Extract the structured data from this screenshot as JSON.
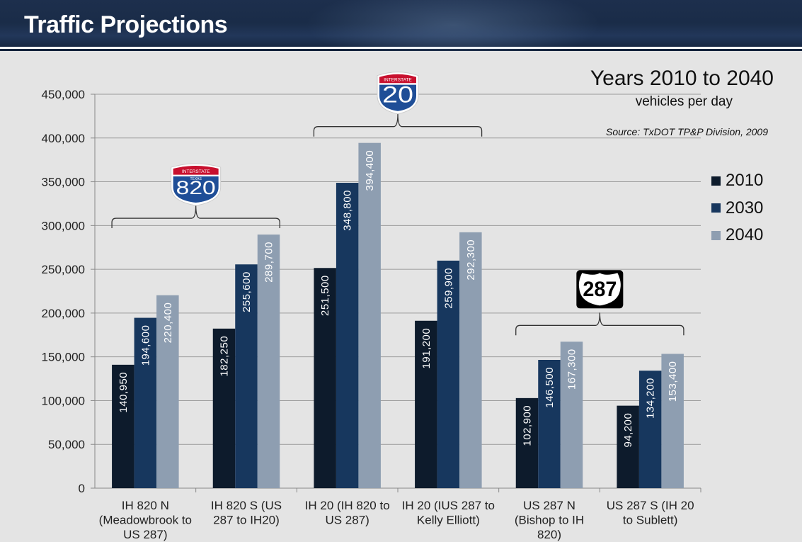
{
  "header": {
    "title": "Traffic Projections"
  },
  "chart_data": {
    "type": "bar",
    "title": "Years 2010 to 2040",
    "subtitle": "vehicles per day",
    "source": "Source: TxDOT TP&P Division, 2009",
    "ylim": [
      0,
      450000
    ],
    "yticks": [
      "0",
      "50,000",
      "100,000",
      "150,000",
      "200,000",
      "250,000",
      "300,000",
      "350,000",
      "400,000",
      "450,000"
    ],
    "categories": [
      [
        "IH 820 N",
        "(Meadowbrook to",
        "US 287)"
      ],
      [
        "IH 820 S (US",
        "287 to IH20)"
      ],
      [
        "IH 20 (IH 820 to",
        "US 287)"
      ],
      [
        "IH 20 (IUS 287 to",
        "Kelly Elliott)"
      ],
      [
        "US 287 N",
        "(Bishop to IH",
        "820)"
      ],
      [
        "US 287 S (IH 20",
        "to Sublett)"
      ]
    ],
    "series": [
      {
        "name": "2010",
        "color": "#0d1b2c",
        "values": [
          140950,
          182250,
          251500,
          191200,
          102900,
          94200
        ],
        "labels": [
          "140,950",
          "182,250",
          "251,500",
          "191,200",
          "102,900",
          "94,200"
        ]
      },
      {
        "name": "2030",
        "color": "#17375e",
        "values": [
          194600,
          255600,
          348800,
          259900,
          146500,
          134200
        ],
        "labels": [
          "194,600",
          "255,600",
          "348,800",
          "259,900",
          "146,500",
          "134,200"
        ]
      },
      {
        "name": "2040",
        "color": "#8e9eb1",
        "values": [
          220400,
          289700,
          394400,
          292300,
          167300,
          153400
        ],
        "labels": [
          "220,400",
          "289,700",
          "394,400",
          "292,300",
          "167,300",
          "153,400"
        ]
      }
    ],
    "shields": [
      {
        "type": "interstate",
        "number": "820",
        "top_text": "INTERSTATE",
        "sub_text": "TEXAS",
        "groups": [
          0,
          1
        ]
      },
      {
        "type": "interstate",
        "number": "20",
        "top_text": "INTERSTATE",
        "sub_text": "",
        "groups": [
          2,
          3
        ]
      },
      {
        "type": "us",
        "number": "287",
        "groups": [
          4,
          5
        ]
      }
    ]
  }
}
